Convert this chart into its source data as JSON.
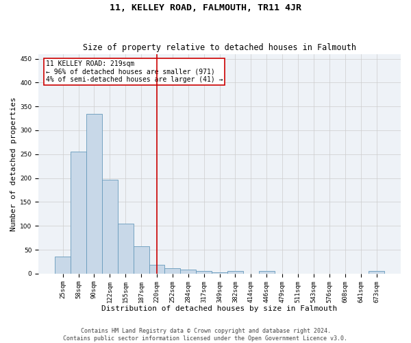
{
  "title": "11, KELLEY ROAD, FALMOUTH, TR11 4JR",
  "subtitle": "Size of property relative to detached houses in Falmouth",
  "xlabel": "Distribution of detached houses by size in Falmouth",
  "ylabel": "Number of detached properties",
  "categories": [
    "25sqm",
    "58sqm",
    "90sqm",
    "122sqm",
    "155sqm",
    "187sqm",
    "220sqm",
    "252sqm",
    "284sqm",
    "317sqm",
    "349sqm",
    "382sqm",
    "414sqm",
    "446sqm",
    "479sqm",
    "511sqm",
    "543sqm",
    "576sqm",
    "608sqm",
    "641sqm",
    "673sqm"
  ],
  "values": [
    35,
    255,
    335,
    197,
    105,
    57,
    19,
    11,
    8,
    6,
    3,
    5,
    0,
    5,
    0,
    0,
    0,
    0,
    0,
    0,
    5
  ],
  "bar_color": "#c8d8e8",
  "bar_edgecolor": "#6699bb",
  "bar_linewidth": 0.6,
  "vline_x_index": 6,
  "vline_color": "#cc0000",
  "annotation_line1": "11 KELLEY ROAD: 219sqm",
  "annotation_line2": "← 96% of detached houses are smaller (971)",
  "annotation_line3": "4% of semi-detached houses are larger (41) →",
  "annotation_box_color": "#cc0000",
  "ylim": [
    0,
    460
  ],
  "yticks": [
    0,
    50,
    100,
    150,
    200,
    250,
    300,
    350,
    400,
    450
  ],
  "grid_color": "#cccccc",
  "bg_color": "#eef2f7",
  "footer_line1": "Contains HM Land Registry data © Crown copyright and database right 2024.",
  "footer_line2": "Contains public sector information licensed under the Open Government Licence v3.0.",
  "title_fontsize": 9.5,
  "subtitle_fontsize": 8.5,
  "xlabel_fontsize": 8,
  "ylabel_fontsize": 8,
  "tick_fontsize": 6.5,
  "annotation_fontsize": 7,
  "footer_fontsize": 6
}
